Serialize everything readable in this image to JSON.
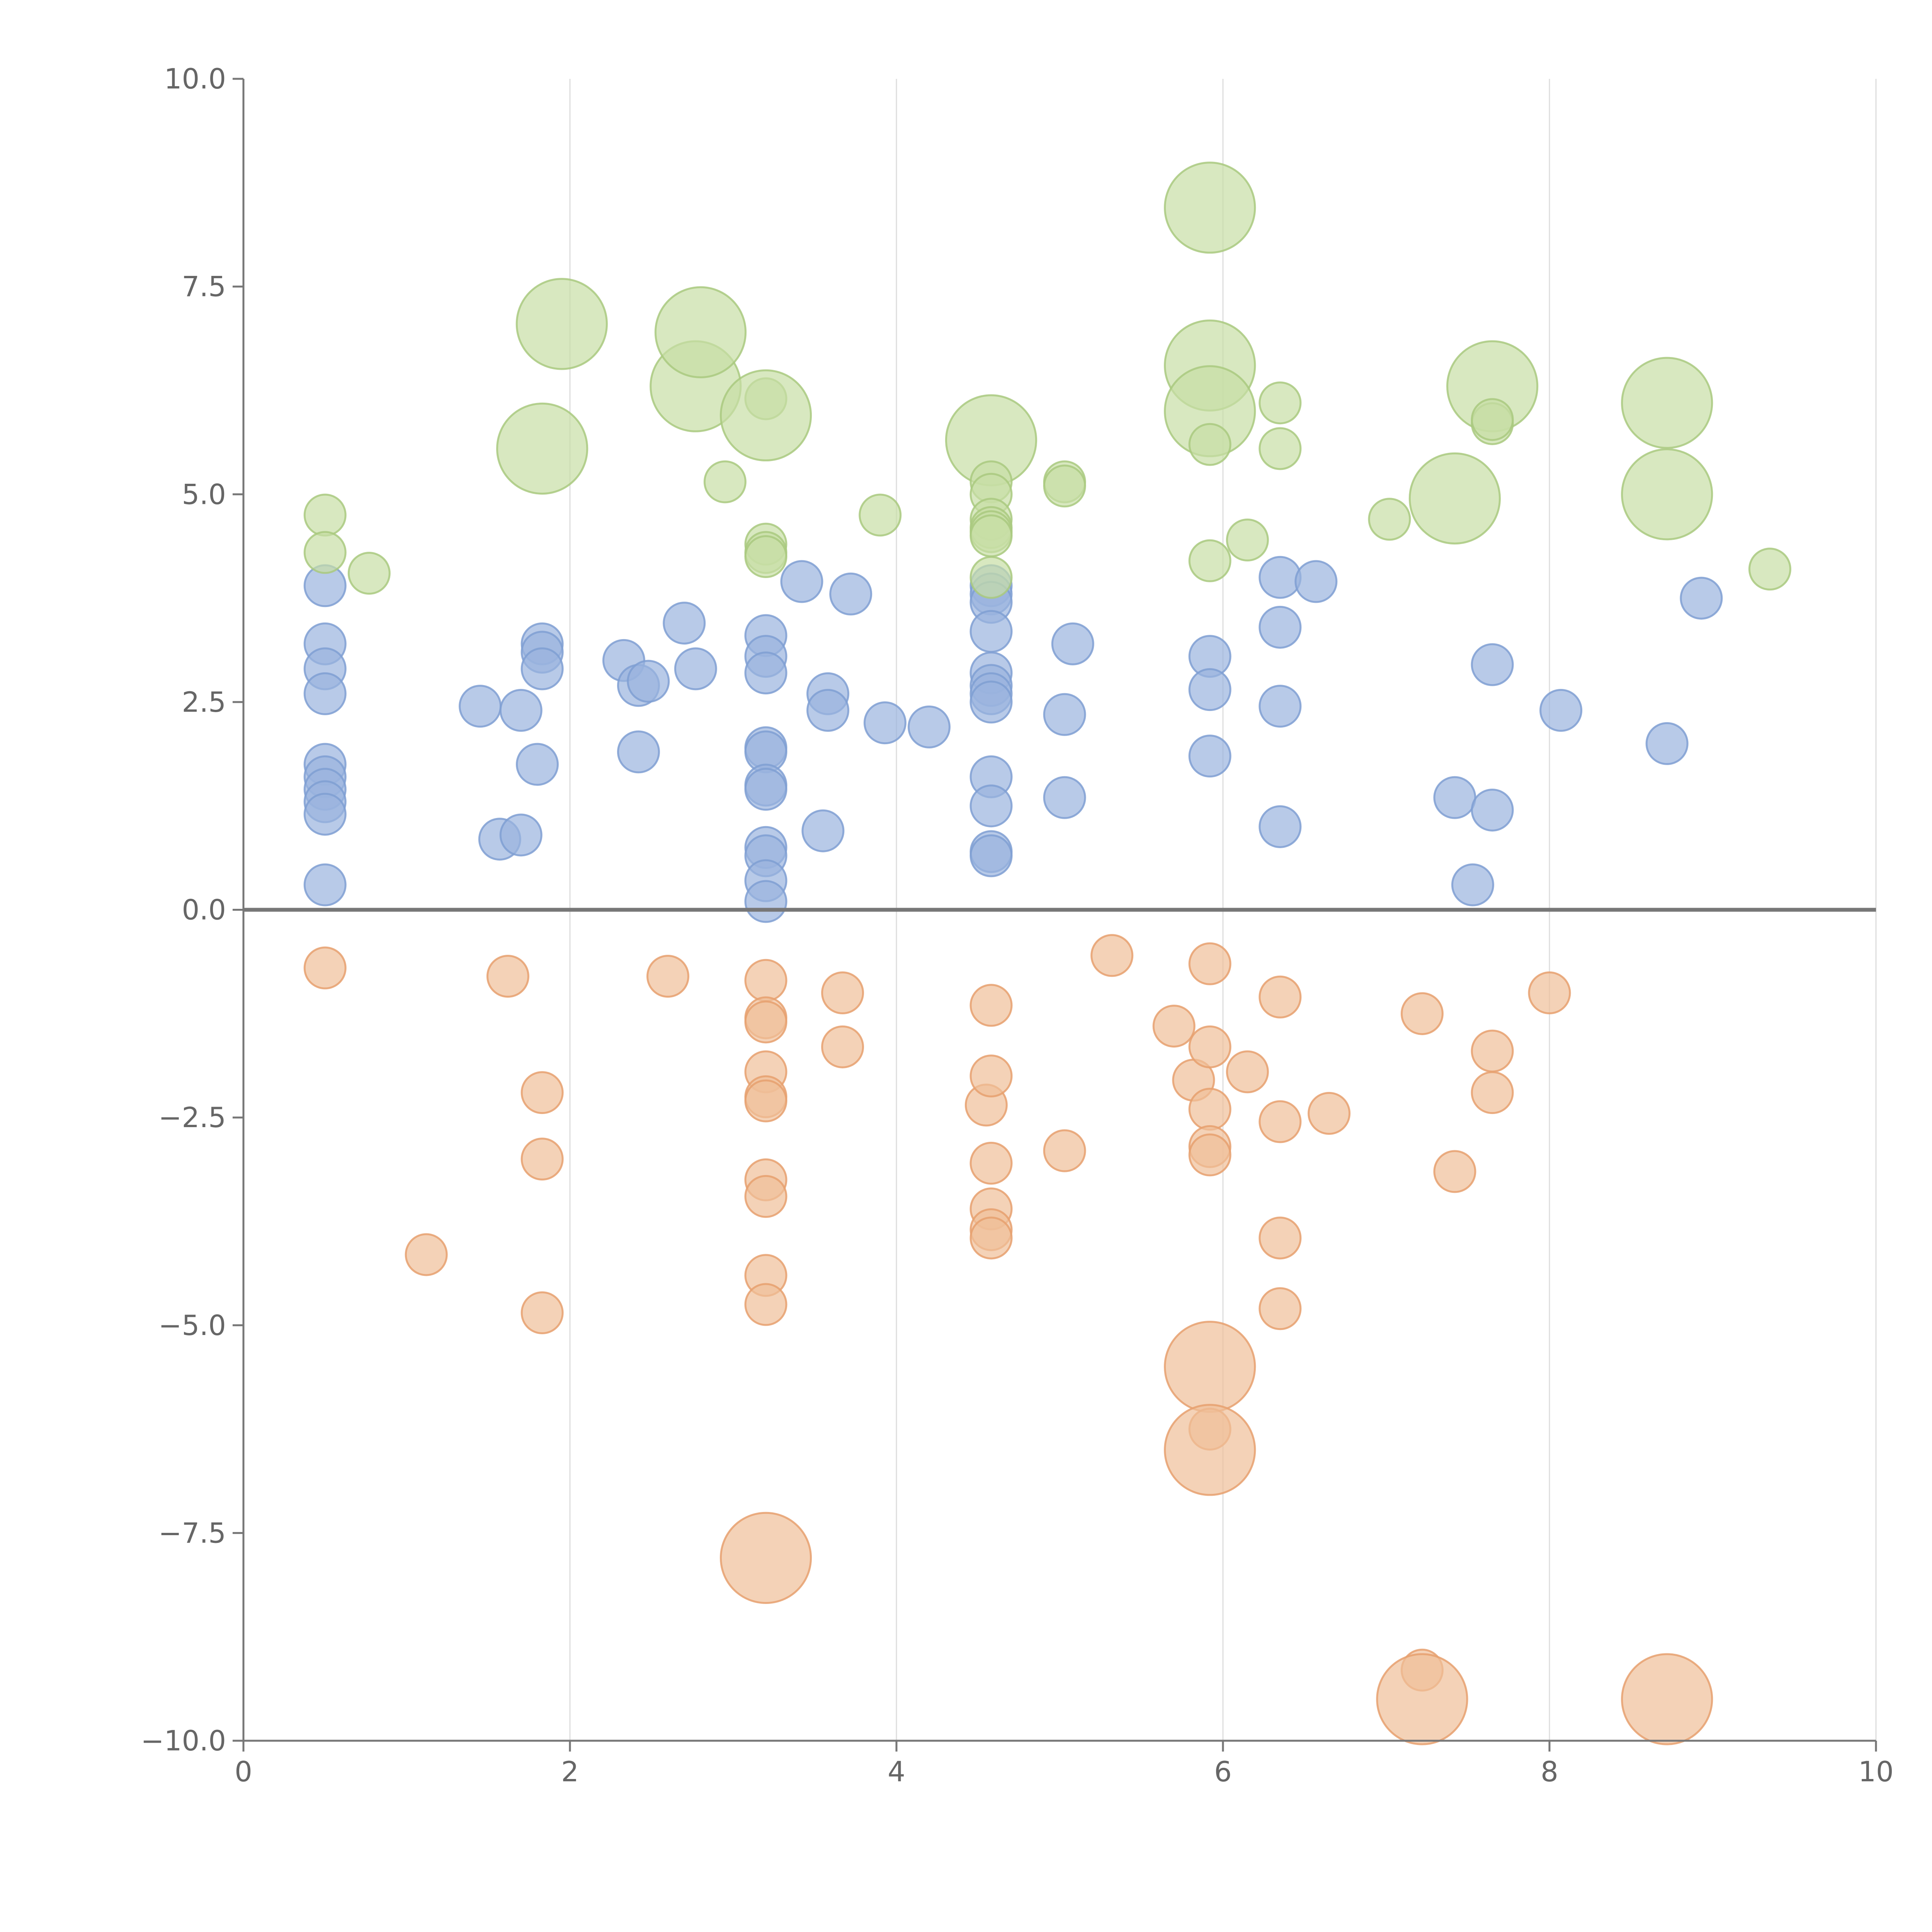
{
  "chart_data": {
    "type": "scatter",
    "title": "",
    "xlabel": "",
    "ylabel": "",
    "xlim": [
      0,
      10
    ],
    "ylim": [
      -10,
      10
    ],
    "x_ticks": [
      {
        "value": 0,
        "label": "0"
      },
      {
        "value": 2,
        "label": "2"
      },
      {
        "value": 4,
        "label": "4"
      },
      {
        "value": 6,
        "label": "6"
      },
      {
        "value": 8,
        "label": "8"
      },
      {
        "value": 10,
        "label": "10"
      }
    ],
    "y_ticks": [
      {
        "value": 10,
        "label": "10.0"
      },
      {
        "value": 7.5,
        "label": "7.5"
      },
      {
        "value": 5,
        "label": "5.0"
      },
      {
        "value": 2.5,
        "label": "2.5"
      },
      {
        "value": 0,
        "label": "0.0"
      },
      {
        "value": -2.5,
        "label": "−2.5"
      },
      {
        "value": -5,
        "label": "−5.0"
      },
      {
        "value": -7.5,
        "label": "−7.5"
      },
      {
        "value": -10,
        "label": "−10.0"
      }
    ],
    "grid": {
      "vertical": true,
      "horizontal": false
    },
    "zero_line": true,
    "legend": "none",
    "series": [
      {
        "color_fill": "#9ab3de",
        "color_stroke": "#7f9fd2",
        "points": [
          [
            0.5,
            3.9,
            1
          ],
          [
            0.5,
            3.2,
            1
          ],
          [
            0.5,
            2.9,
            1
          ],
          [
            0.5,
            2.6,
            1
          ],
          [
            0.5,
            1.75,
            1
          ],
          [
            0.5,
            1.6,
            1
          ],
          [
            0.5,
            1.45,
            1
          ],
          [
            0.5,
            1.3,
            1
          ],
          [
            0.5,
            1.15,
            1
          ],
          [
            0.5,
            0.3,
            1
          ],
          [
            1.45,
            2.45,
            1
          ],
          [
            1.57,
            0.85,
            1
          ],
          [
            1.7,
            0.9,
            1
          ],
          [
            1.7,
            2.4,
            1
          ],
          [
            1.8,
            1.75,
            1
          ],
          [
            1.83,
            3.2,
            1
          ],
          [
            1.83,
            3.1,
            1
          ],
          [
            1.83,
            2.9,
            1
          ],
          [
            2.33,
            3.0,
            1
          ],
          [
            2.42,
            2.7,
            1
          ],
          [
            2.42,
            1.9,
            1
          ],
          [
            2.48,
            2.75,
            1
          ],
          [
            2.7,
            3.45,
            1
          ],
          [
            2.77,
            2.9,
            1
          ],
          [
            3.2,
            3.3,
            1
          ],
          [
            3.2,
            3.05,
            1
          ],
          [
            3.2,
            2.85,
            1
          ],
          [
            3.2,
            1.95,
            1
          ],
          [
            3.2,
            1.9,
            1
          ],
          [
            3.2,
            1.5,
            1
          ],
          [
            3.2,
            1.45,
            1
          ],
          [
            3.2,
            0.75,
            1
          ],
          [
            3.2,
            0.65,
            1
          ],
          [
            3.2,
            0.35,
            1
          ],
          [
            3.2,
            0.1,
            1
          ],
          [
            3.42,
            3.95,
            1
          ],
          [
            3.55,
            0.95,
            1
          ],
          [
            3.58,
            2.6,
            1
          ],
          [
            3.58,
            2.4,
            1
          ],
          [
            3.72,
            3.8,
            1
          ],
          [
            3.93,
            2.25,
            1
          ],
          [
            4.2,
            2.2,
            1
          ],
          [
            4.58,
            3.9,
            1
          ],
          [
            4.58,
            3.8,
            1
          ],
          [
            4.58,
            3.7,
            1
          ],
          [
            4.58,
            3.35,
            1
          ],
          [
            4.58,
            2.85,
            1
          ],
          [
            4.58,
            2.7,
            1
          ],
          [
            4.58,
            2.6,
            1
          ],
          [
            4.58,
            2.5,
            1
          ],
          [
            4.58,
            1.6,
            1
          ],
          [
            4.58,
            1.25,
            1
          ],
          [
            4.58,
            0.7,
            1
          ],
          [
            4.58,
            0.65,
            1
          ],
          [
            5.03,
            2.35,
            1
          ],
          [
            5.03,
            1.35,
            1
          ],
          [
            5.08,
            3.2,
            1
          ],
          [
            5.92,
            3.05,
            1
          ],
          [
            5.92,
            2.65,
            1
          ],
          [
            5.92,
            1.85,
            1
          ],
          [
            6.35,
            4.0,
            1
          ],
          [
            6.35,
            3.4,
            1
          ],
          [
            6.35,
            2.45,
            1
          ],
          [
            6.35,
            1.0,
            1
          ],
          [
            6.57,
            3.95,
            1
          ],
          [
            7.42,
            1.35,
            1
          ],
          [
            7.53,
            0.3,
            1
          ],
          [
            7.65,
            2.95,
            1
          ],
          [
            7.65,
            1.2,
            1
          ],
          [
            8.07,
            2.4,
            1
          ],
          [
            8.72,
            2.0,
            1
          ],
          [
            8.93,
            3.75,
            1
          ]
        ]
      },
      {
        "color_fill": "#f0bf98",
        "color_stroke": "#e6a06f",
        "points": [
          [
            0.5,
            -0.7,
            1
          ],
          [
            1.12,
            -4.15,
            1
          ],
          [
            1.62,
            -0.8,
            1
          ],
          [
            1.83,
            -2.2,
            1
          ],
          [
            1.83,
            -3.0,
            1
          ],
          [
            1.83,
            -4.85,
            1
          ],
          [
            2.6,
            -0.8,
            1
          ],
          [
            3.2,
            -0.85,
            1
          ],
          [
            3.2,
            -1.3,
            1
          ],
          [
            3.2,
            -1.35,
            1
          ],
          [
            3.2,
            -1.95,
            1
          ],
          [
            3.2,
            -2.25,
            1
          ],
          [
            3.2,
            -2.3,
            1
          ],
          [
            3.2,
            -3.25,
            1
          ],
          [
            3.2,
            -3.45,
            1
          ],
          [
            3.2,
            -4.4,
            1
          ],
          [
            3.2,
            -4.75,
            1
          ],
          [
            3.2,
            -7.8,
            2.2
          ],
          [
            3.67,
            -1.0,
            1
          ],
          [
            3.67,
            -1.65,
            1
          ],
          [
            4.55,
            -2.35,
            1
          ],
          [
            4.58,
            -1.15,
            1
          ],
          [
            4.58,
            -2.0,
            1
          ],
          [
            4.58,
            -3.05,
            1
          ],
          [
            4.58,
            -3.6,
            1
          ],
          [
            4.58,
            -3.85,
            1
          ],
          [
            4.58,
            -3.95,
            1
          ],
          [
            5.03,
            -2.9,
            1
          ],
          [
            5.32,
            -0.55,
            1
          ],
          [
            5.7,
            -1.4,
            1
          ],
          [
            5.82,
            -2.05,
            1
          ],
          [
            5.92,
            -0.65,
            1
          ],
          [
            5.92,
            -1.65,
            1
          ],
          [
            5.92,
            -2.4,
            1
          ],
          [
            5.92,
            -2.85,
            1
          ],
          [
            5.92,
            -2.95,
            1
          ],
          [
            5.92,
            -5.5,
            2.2
          ],
          [
            5.92,
            -6.25,
            1
          ],
          [
            5.92,
            -6.5,
            2.2
          ],
          [
            6.15,
            -1.95,
            1
          ],
          [
            6.35,
            -1.05,
            1
          ],
          [
            6.35,
            -2.55,
            1
          ],
          [
            6.35,
            -3.95,
            1
          ],
          [
            6.35,
            -4.8,
            1
          ],
          [
            6.65,
            -2.45,
            1
          ],
          [
            7.22,
            -1.25,
            1
          ],
          [
            7.22,
            -9.15,
            1
          ],
          [
            7.22,
            -9.5,
            2.2
          ],
          [
            7.42,
            -3.15,
            1
          ],
          [
            7.65,
            -1.7,
            1
          ],
          [
            7.65,
            -2.2,
            1
          ],
          [
            8.0,
            -1.0,
            1
          ],
          [
            8.72,
            -9.5,
            2.2
          ]
        ]
      },
      {
        "color_fill": "#c8dea5",
        "color_stroke": "#a9c97f",
        "points": [
          [
            0.5,
            4.75,
            1
          ],
          [
            0.5,
            4.3,
            1
          ],
          [
            0.77,
            4.05,
            1
          ],
          [
            1.83,
            5.55,
            2.2
          ],
          [
            1.95,
            7.05,
            2.2
          ],
          [
            2.77,
            6.3,
            2.2
          ],
          [
            2.8,
            6.95,
            2.2
          ],
          [
            2.95,
            5.15,
            1
          ],
          [
            3.2,
            6.15,
            1
          ],
          [
            3.2,
            5.95,
            2.2
          ],
          [
            3.2,
            4.4,
            1
          ],
          [
            3.2,
            4.3,
            1
          ],
          [
            3.2,
            4.25,
            1
          ],
          [
            3.9,
            4.75,
            1
          ],
          [
            4.58,
            5.65,
            2.2
          ],
          [
            4.58,
            5.15,
            1
          ],
          [
            4.58,
            5.0,
            1
          ],
          [
            4.58,
            4.7,
            1
          ],
          [
            4.58,
            4.6,
            1
          ],
          [
            4.58,
            4.55,
            1
          ],
          [
            4.58,
            4.5,
            1
          ],
          [
            4.58,
            4.0,
            1
          ],
          [
            5.03,
            5.15,
            1
          ],
          [
            5.03,
            5.1,
            1
          ],
          [
            5.92,
            8.45,
            2.2
          ],
          [
            5.92,
            6.55,
            2.2
          ],
          [
            5.92,
            6.0,
            2.2
          ],
          [
            5.92,
            5.6,
            1
          ],
          [
            5.92,
            4.2,
            1
          ],
          [
            6.15,
            4.45,
            1
          ],
          [
            6.35,
            6.1,
            1
          ],
          [
            6.35,
            5.55,
            1
          ],
          [
            7.02,
            4.7,
            1
          ],
          [
            7.42,
            4.95,
            2.2
          ],
          [
            7.65,
            6.3,
            2.2
          ],
          [
            7.65,
            5.85,
            1
          ],
          [
            7.65,
            5.9,
            1
          ],
          [
            8.72,
            6.1,
            2.2
          ],
          [
            8.72,
            5.0,
            2.2
          ],
          [
            9.35,
            4.1,
            1
          ]
        ]
      }
    ]
  }
}
